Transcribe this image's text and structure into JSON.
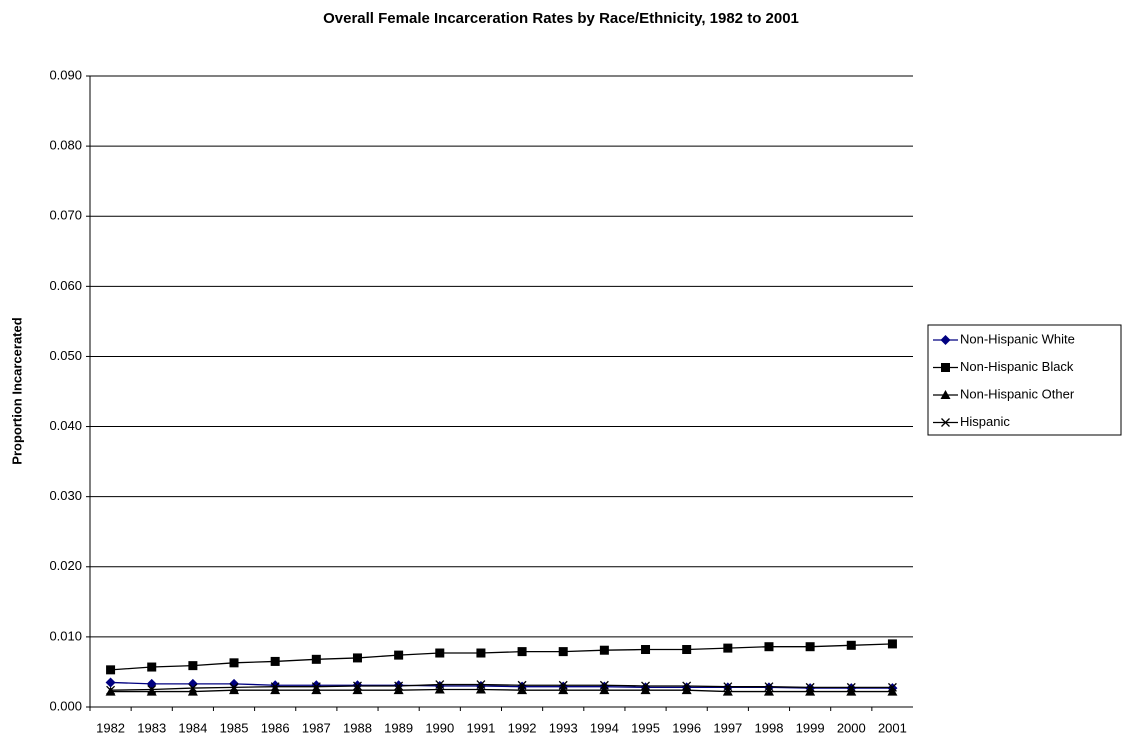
{
  "chart_data": {
    "type": "line",
    "title": "Overall Female Incarceration Rates by Race/Ethnicity, 1982 to 2001",
    "y_label": "Proportion Incarcerated",
    "categories": [
      "1982",
      "1983",
      "1984",
      "1985",
      "1986",
      "1987",
      "1988",
      "1989",
      "1990",
      "1991",
      "1992",
      "1993",
      "1994",
      "1995",
      "1996",
      "1997",
      "1998",
      "1999",
      "2000",
      "2001"
    ],
    "series": [
      {
        "name": "Non-Hispanic White",
        "color": "#000080",
        "marker": "diamond",
        "values": [
          0.0035,
          0.0033,
          0.0033,
          0.0033,
          0.0031,
          0.0031,
          0.0031,
          0.0031,
          0.003,
          0.003,
          0.0029,
          0.0029,
          0.0029,
          0.0028,
          0.0028,
          0.0028,
          0.0028,
          0.0027,
          0.0027,
          0.0027
        ]
      },
      {
        "name": "Non-Hispanic Black",
        "color": "#000000",
        "marker": "square",
        "values": [
          0.0053,
          0.0057,
          0.0059,
          0.0063,
          0.0065,
          0.0068,
          0.007,
          0.0074,
          0.0077,
          0.0077,
          0.0079,
          0.0079,
          0.0081,
          0.0082,
          0.0082,
          0.0084,
          0.0086,
          0.0086,
          0.0088,
          0.009
        ]
      },
      {
        "name": "Non-Hispanic Other",
        "color": "#000000",
        "marker": "triangle",
        "values": [
          0.0022,
          0.0022,
          0.0022,
          0.0024,
          0.0024,
          0.0024,
          0.0024,
          0.0024,
          0.0025,
          0.0025,
          0.0024,
          0.0024,
          0.0024,
          0.0024,
          0.0024,
          0.0022,
          0.0022,
          0.0022,
          0.0022,
          0.0022
        ]
      },
      {
        "name": "Hispanic",
        "color": "#000000",
        "marker": "x",
        "values": [
          0.0024,
          0.0025,
          0.0027,
          0.0028,
          0.0029,
          0.0029,
          0.003,
          0.003,
          0.0032,
          0.0032,
          0.0031,
          0.0031,
          0.0031,
          0.003,
          0.003,
          0.0029,
          0.0029,
          0.0028,
          0.0028,
          0.0028
        ]
      }
    ],
    "ylim": [
      0,
      0.09
    ],
    "yticks": [
      {
        "value": 0,
        "label": "0.000"
      },
      {
        "value": 0.01,
        "label": "0.010"
      },
      {
        "value": 0.02,
        "label": "0.020"
      },
      {
        "value": 0.03,
        "label": "0.030"
      },
      {
        "value": 0.04,
        "label": "0.040"
      },
      {
        "value": 0.05,
        "label": "0.050"
      },
      {
        "value": 0.06,
        "label": "0.060"
      },
      {
        "value": 0.07,
        "label": "0.070"
      },
      {
        "value": 0.08,
        "label": "0.080"
      },
      {
        "value": 0.09,
        "label": "0.090"
      }
    ],
    "grid": true,
    "legend": "right"
  }
}
